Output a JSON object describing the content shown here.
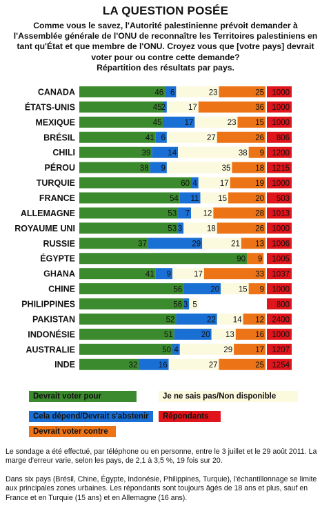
{
  "title": "LA QUESTION POSÉE",
  "question": "Comme vous le savez, l'Autorité palestinienne prévoit demander à\nl'Assemblée générale de l'ONU de reconnaître les Territoires palestiniens en\ntant qu'État et que membre de l'ONU. Croyez vous que [votre pays] devrait\nvoter pour ou contre cette demande?\nRépartition des résultats par pays.",
  "legend": {
    "pour": "Devrait voter pour",
    "depend": "Cela dépend/Devrait s'abstenir",
    "contre": "Devrait voter contre",
    "nsp": "Je ne sais pas/Non disponible",
    "repondants": "Répondants"
  },
  "colors": {
    "pour": "#3c8a2e",
    "depend": "#1a6fd4",
    "nsp": "#fbf9de",
    "contre": "#ec7417",
    "repondants": "#e0151b"
  },
  "notes": {
    "n1": "Le sondage a été effectué, par téléphone ou en personne, entre le 3 juillet et le 29 août 2011. La marge d'erreur varie, selon les pays, de 2,1 à 3,5 %, 19 fois sur 20.",
    "n2": "Dans six pays (Brésil, Chine, Égypte, Indonésie, Philippines, Turquie), l'échantillonnage se limite aux principales zones urbaines. Les répondants sont toujours âgés de 18 ans et plus, sauf en France et en Turquie (15 ans) et en Allemagne (16 ans)."
  },
  "chart_data": {
    "type": "bar",
    "stacked": "horizontal-100%",
    "categories": [
      "CANADA",
      "ÉTATS-UNIS",
      "MEXIQUE",
      "BRÉSIL",
      "CHILI",
      "PÉROU",
      "TURQUIE",
      "FRANCE",
      "ALLEMAGNE",
      "ROYAUME UNI",
      "RUSSIE",
      "ÉGYPTE",
      "GHANA",
      "CHINE",
      "PHILIPPINES",
      "PAKISTAN",
      "INDONÉSIE",
      "AUSTRALIE",
      "INDE"
    ],
    "series": [
      {
        "name": "Devrait voter pour",
        "key": "pour",
        "values": [
          46,
          45,
          45,
          41,
          39,
          38,
          60,
          54,
          53,
          53,
          37,
          90,
          41,
          56,
          56,
          52,
          51,
          50,
          32
        ]
      },
      {
        "name": "Cela dépend/Devrait s'abstenir",
        "key": "depend",
        "values": [
          6,
          2,
          17,
          6,
          14,
          9,
          4,
          11,
          7,
          3,
          29,
          0,
          9,
          20,
          3,
          22,
          20,
          4,
          16
        ]
      },
      {
        "name": "Je ne sais pas/Non disponible",
        "key": "nsp",
        "values": [
          23,
          17,
          23,
          27,
          38,
          35,
          17,
          15,
          12,
          18,
          21,
          0,
          17,
          15,
          5,
          14,
          13,
          29,
          27
        ]
      },
      {
        "name": "Devrait voter contre",
        "key": "contre",
        "values": [
          25,
          36,
          15,
          26,
          9,
          18,
          19,
          20,
          28,
          26,
          13,
          9,
          33,
          9,
          0,
          12,
          16,
          17,
          25
        ]
      }
    ],
    "respondents": {
      "name": "Répondants",
      "values": [
        "1000",
        "1000",
        "1000",
        "806",
        "1200",
        "1215",
        "1000",
        "503",
        "1013",
        "1000",
        "1006",
        "1005",
        "1037",
        "1000",
        "800",
        "2400",
        "1000",
        "1207",
        "1254"
      ]
    },
    "xlim": [
      0,
      100
    ]
  }
}
